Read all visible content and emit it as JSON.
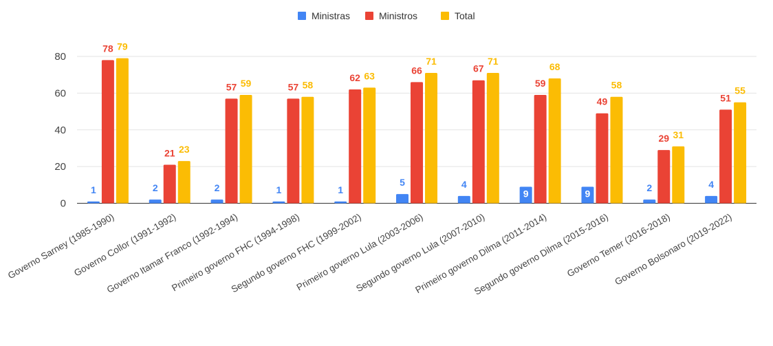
{
  "chart_data": {
    "type": "bar",
    "title": "",
    "xlabel": "",
    "ylabel": "",
    "ylim": [
      0,
      85
    ],
    "yticks": [
      0,
      20,
      40,
      60,
      80
    ],
    "grid": true,
    "legend_position": "top-center",
    "categories": [
      "Governo Sarney (1985-1990)",
      "Governo Collor (1991-1992)",
      "Governo Itamar Franco (1992-1994)",
      "Primeiro governo FHC (1994-1998)",
      "Segundo governo FHC (1999-2002)",
      "Primeiro governo Lula (2003-2006)",
      "Segundo governo Lula (2007-2010)",
      "Primeiro governo Dilma (2011-2014)",
      "Segundo governo Dilma (2015-2016)",
      "Governo Temer (2016-2018)",
      "Governo Bolsonaro (2019-2022)"
    ],
    "series": [
      {
        "name": "Ministras",
        "color": "#4285f4",
        "values": [
          1,
          2,
          2,
          1,
          1,
          5,
          4,
          9,
          9,
          2,
          4
        ]
      },
      {
        "name": "Ministros",
        "color": "#ea4335",
        "values": [
          78,
          21,
          57,
          57,
          62,
          66,
          67,
          59,
          49,
          29,
          51
        ]
      },
      {
        "name": "Total",
        "color": "#fbbc04",
        "values": [
          79,
          23,
          59,
          58,
          63,
          71,
          71,
          68,
          58,
          31,
          55
        ]
      }
    ]
  }
}
